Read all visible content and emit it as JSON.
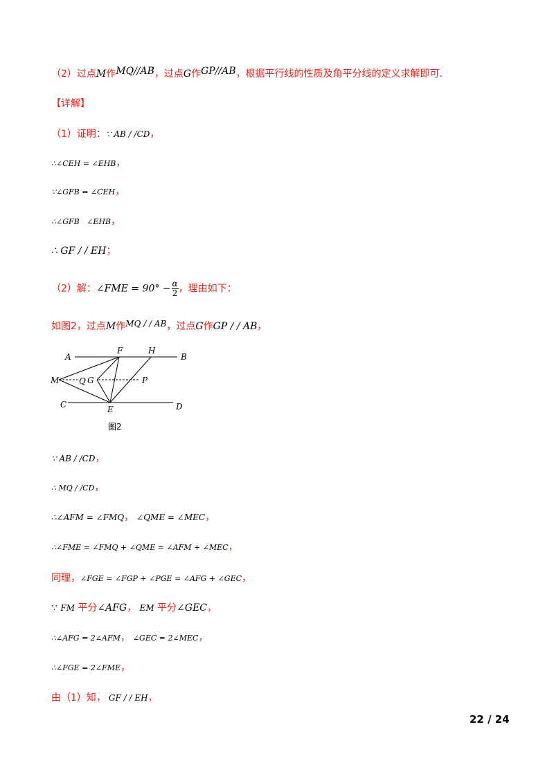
{
  "lines": {
    "l1": {
      "a": "（2）过点",
      "b": "M",
      "c": "作",
      "d": "MQ//AB",
      "e": "，过点",
      "f": "G",
      "g": "作",
      "h": "GP//AB",
      "i": "，根据平行线的性质及角平分线的定义求解即可."
    },
    "l2": {
      "a": "【详解】"
    },
    "l3": {
      "a": "（1）证明：",
      "b": "∵ AB / /CD",
      "c": "，"
    },
    "l4": {
      "a": "∴∠CEH = ∠EHB",
      "b": "，"
    },
    "l5": {
      "a": "∵∠GFB = ∠CEH",
      "b": "，"
    },
    "l6": {
      "a": "∴∠GFB   ∠EHB",
      "b": "，"
    },
    "l7": {
      "a": "∴ GF / / EH",
      "b": "；"
    },
    "l8": {
      "a": "（2）解：",
      "b": "∠FME = 90° −",
      "num": "α",
      "den": "2",
      "c": "，理由如下："
    },
    "l9": {
      "a": "如图2，过点",
      "b": "M",
      "c": "作",
      "d": "MQ / / AB",
      "e": "，过点",
      "f": "G",
      "g": "作",
      "h": "GP / / AB",
      "i": "，"
    },
    "l10": {
      "a": "∵ AB / /CD",
      "b": "，"
    },
    "l11": {
      "a": "∴ MQ / /CD",
      "b": "，"
    },
    "l12": {
      "a": "∴∠AFM = ∠FMQ",
      "b": "，",
      "c": "∠QME = ∠MEC",
      "d": "，"
    },
    "l13": {
      "a": "∴∠FME = ∠FMQ + ∠QME = ∠AFM + ∠MEC",
      "b": "，"
    },
    "l14": {
      "a": "同理，",
      "b": "∠FGE = ∠FGP + ∠PGE = ∠AFG + ∠GEC",
      "c": "，"
    },
    "l15": {
      "a": "∵",
      "b": "FM",
      "c": "平分",
      "d": "∠AFG",
      "e": "，",
      "f": "EM",
      "g": "平分",
      "h": "∠GEC",
      "i": "，"
    },
    "l16": {
      "a": "∴∠AFG = 2∠AFM",
      "b": "，",
      "c": "∠GEC = 2∠MEC",
      "d": "，"
    },
    "l17": {
      "a": "∴∠FGE = 2∠FME",
      "b": "，"
    },
    "l18": {
      "a": "由（1）知，",
      "b": "GF / / EH",
      "c": "，"
    }
  },
  "figure": {
    "labels": {
      "A": "A",
      "F": "F",
      "H": "H",
      "B": "B",
      "M": "M",
      "Q": "Q",
      "G": "G",
      "P": "P",
      "C": "C",
      "E": "E",
      "D": "D"
    },
    "caption": "图2"
  },
  "page_number": "22 / 24"
}
